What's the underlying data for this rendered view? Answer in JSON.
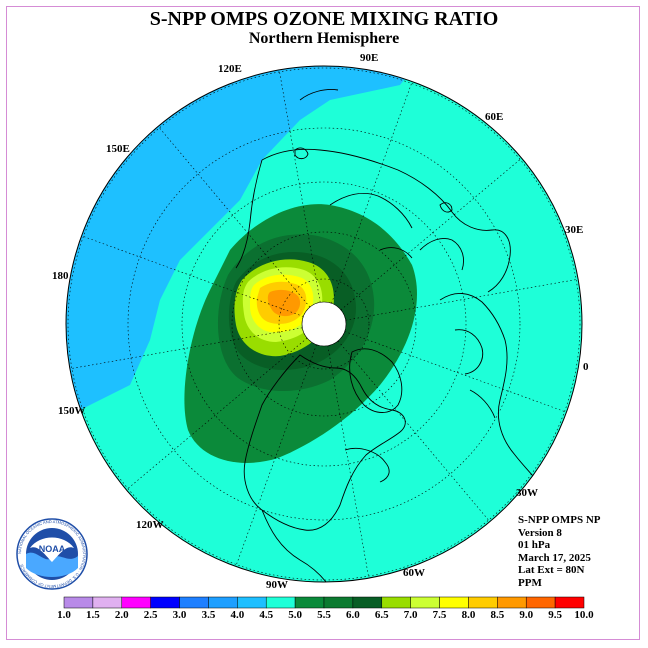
{
  "header": {
    "title": "S-NPP OMPS OZONE MIXING RATIO",
    "subtitle": "Northern Hemisphere"
  },
  "longitude_labels": [
    "90E",
    "60E",
    "30E",
    "0",
    "30W",
    "60W",
    "90W",
    "120W",
    "150W",
    "180",
    "150E",
    "120E"
  ],
  "info": {
    "line1": "S-NPP OMPS NP",
    "line2": "Version 8",
    "line3": "01 hPa",
    "line4": "March 17, 2025",
    "line5": "Lat Ext = 80N",
    "line6": "PPM"
  },
  "logo": {
    "text": "NOAA",
    "ring_text": "NATIONAL OCEANIC AND ATMOSPHERIC ADMINISTRATION · U.S. DEPARTMENT OF COMMERCE"
  },
  "colorbar": {
    "ticks": [
      "1.0",
      "1.5",
      "2.0",
      "2.5",
      "3.0",
      "3.5",
      "4.0",
      "4.5",
      "5.0",
      "5.5",
      "6.0",
      "6.5",
      "7.0",
      "7.5",
      "8.0",
      "8.5",
      "9.0",
      "9.5",
      "10.0"
    ],
    "colors": [
      "#b88ae8",
      "#e0b0f0",
      "#ff00ff",
      "#0000ff",
      "#1e7fff",
      "#1e9fff",
      "#1ebfff",
      "#1effd8",
      "#0a8a3a",
      "#0b7a30",
      "#085e25",
      "#99dd00",
      "#ccff33",
      "#ffff00",
      "#ffcc00",
      "#ff9900",
      "#ff6600",
      "#ff0000",
      "#8b5a3c"
    ]
  },
  "map_colors": {
    "background": "#1effd8",
    "low": "#1ec0ff",
    "green_outer": "#0b8a3a",
    "green_mid": "#0b7030",
    "green_inner": "#085e25",
    "lime": "#99dd00",
    "yellow_green": "#ccff33",
    "yellow": "#ffff00",
    "orange_light": "#ffcc00",
    "orange": "#ff9900",
    "pole": "#ffffff"
  }
}
